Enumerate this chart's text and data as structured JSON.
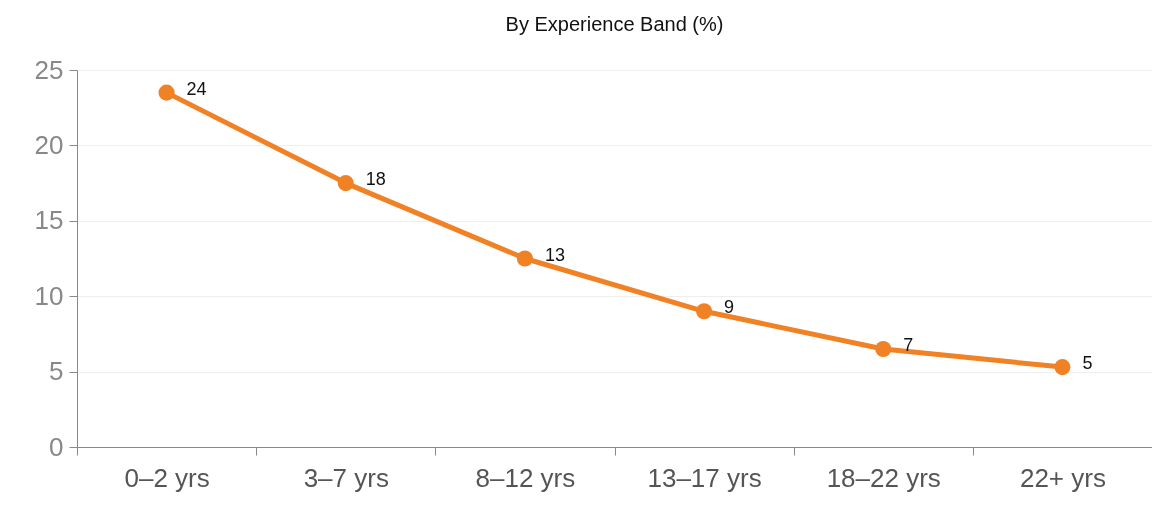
{
  "chart_data": {
    "type": "line",
    "title": "By Experience Band (%)",
    "categories": [
      "0–2 yrs",
      "3–7 yrs",
      "8–12 yrs",
      "13–17 yrs",
      "18–22 yrs",
      "22+ yrs"
    ],
    "series": [
      {
        "color": "#f08125",
        "values": [
          23.5,
          17.5,
          12.5,
          9,
          6.5,
          5.3
        ],
        "value_labels": [
          "24",
          "18",
          "13",
          "9",
          "7",
          "5"
        ]
      }
    ],
    "ylim": [
      0,
      25
    ],
    "yticks": [
      0,
      5,
      10,
      15,
      20,
      25
    ],
    "grid": "y",
    "marker": "circle",
    "line_style": "solid"
  }
}
